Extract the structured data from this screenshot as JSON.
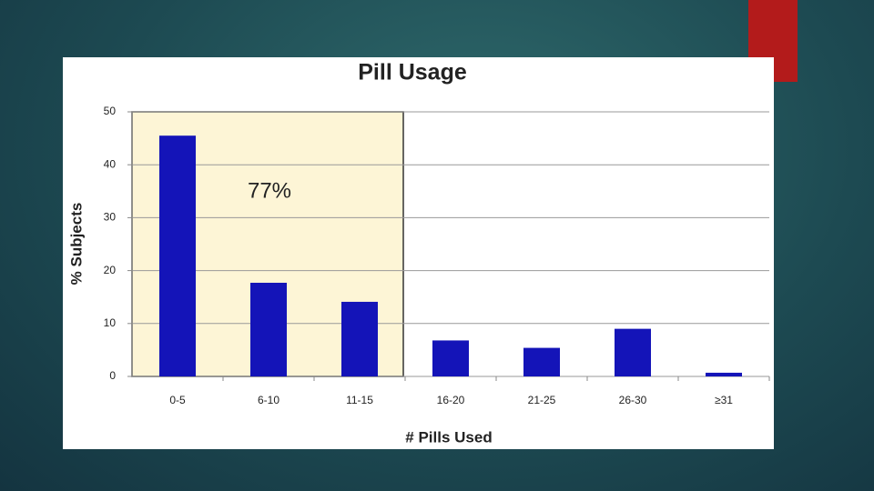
{
  "chart_data": {
    "type": "bar",
    "title": "Pill Usage",
    "x_label": "# Pills Used",
    "y_label": "% Subjects",
    "categories": [
      "0-5",
      "6-10",
      "11-15",
      "16-20",
      "21-25",
      "26-30",
      "≥31"
    ],
    "values": [
      45.5,
      17.7,
      14.1,
      6.8,
      5.4,
      9.0,
      0.7
    ],
    "color": "#1414b8",
    "ylim": [
      0,
      50
    ],
    "yticks": [
      0,
      10,
      20,
      30,
      40,
      50
    ],
    "grid": true,
    "annotation": "77%"
  }
}
